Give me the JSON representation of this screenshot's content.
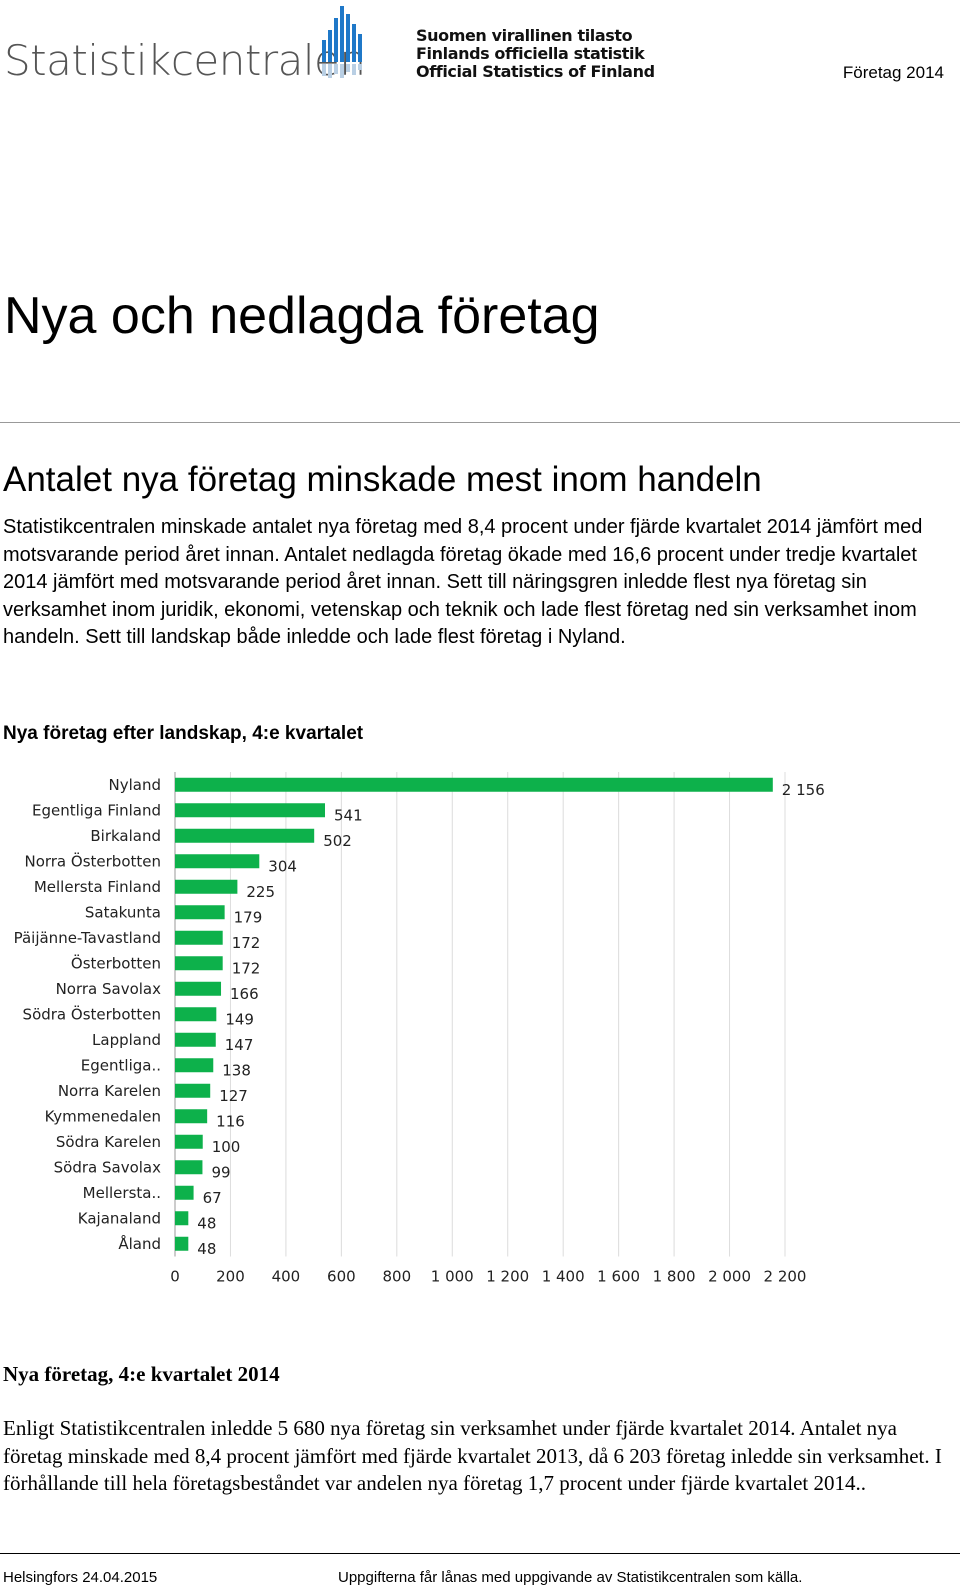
{
  "header": {
    "logo_text": "Statistikcentralen",
    "osf_lines": [
      "Suomen virallinen tilasto",
      "Finlands officiella statistik",
      "Official Statistics of Finland"
    ],
    "topic": "Företag 2014"
  },
  "main": {
    "title": "Nya och nedlagda företag",
    "section_heading": "Antalet nya företag minskade mest inom handeln",
    "lead": "Statistikcentralen minskade antalet nya företag med 8,4 procent under fjärde kvartalet 2014 jämfört med motsvarande period året innan. Antalet nedlagda företag ökade med 16,6 procent under tredje kvartalet 2014 jämfört med motsvarande period året innan. Sett till näringsgren inledde flest nya företag sin verksamhet inom juridik, ekonomi, vetenskap och teknik och lade flest företag ned sin verksamhet inom handeln. Sett till landskap både inledde och lade flest företag i Nyland."
  },
  "chart_title": "Nya företag efter landskap, 4:e kvartalet",
  "chart_data": {
    "type": "bar",
    "orientation": "horizontal",
    "title": "",
    "xlabel": "",
    "ylabel": "",
    "categories": [
      "Nyland",
      "Egentliga Finland",
      "Birkaland",
      "Norra Österbotten",
      "Mellersta Finland",
      "Satakunta",
      "Päijänne-Tavastland",
      "Österbotten",
      "Norra Savolax",
      "Södra Österbotten",
      "Lappland",
      "Egentliga..",
      "Norra Karelen",
      "Kymmenedalen",
      "Södra Karelen",
      "Södra Savolax",
      "Mellersta..",
      "Kajanaland",
      "Åland"
    ],
    "values": [
      2156,
      541,
      502,
      304,
      225,
      179,
      172,
      172,
      166,
      149,
      147,
      138,
      127,
      116,
      100,
      99,
      67,
      48,
      48
    ],
    "value_labels": [
      "2 156",
      "541",
      "502",
      "304",
      "225",
      "179",
      "172",
      "172",
      "166",
      "149",
      "147",
      "138",
      "127",
      "116",
      "100",
      "99",
      "67",
      "48",
      "48"
    ],
    "xlim": [
      0,
      2200
    ],
    "ticks": [
      0,
      200,
      400,
      600,
      800,
      1000,
      1200,
      1400,
      1600,
      1800,
      2000,
      2200
    ],
    "tick_labels": [
      "0",
      "200",
      "400",
      "600",
      "800",
      "1 000",
      "1 200",
      "1 400",
      "1 600",
      "1 800",
      "2 000",
      "2 200"
    ],
    "grid": true,
    "color": "#0db14b"
  },
  "box": {
    "title": "Nya företag, 4:e kvartalet 2014",
    "text": "Enligt Statistikcentralen inledde 5 680 nya företag sin verksamhet under fjärde kvartalet 2014. Antalet nya företag minskade med 8,4 procent jämfört med fjärde kvartalet 2013, då 6 203 företag inledde sin verksamhet. I förhållande till hela företagsbeståndet var andelen nya företag 1,7 procent under fjärde kvartalet 2014.."
  },
  "footer": {
    "left": "Helsingfors 24.04.2015",
    "right": "Uppgifterna får lånas med uppgivande av Statistikcentralen som källa."
  }
}
